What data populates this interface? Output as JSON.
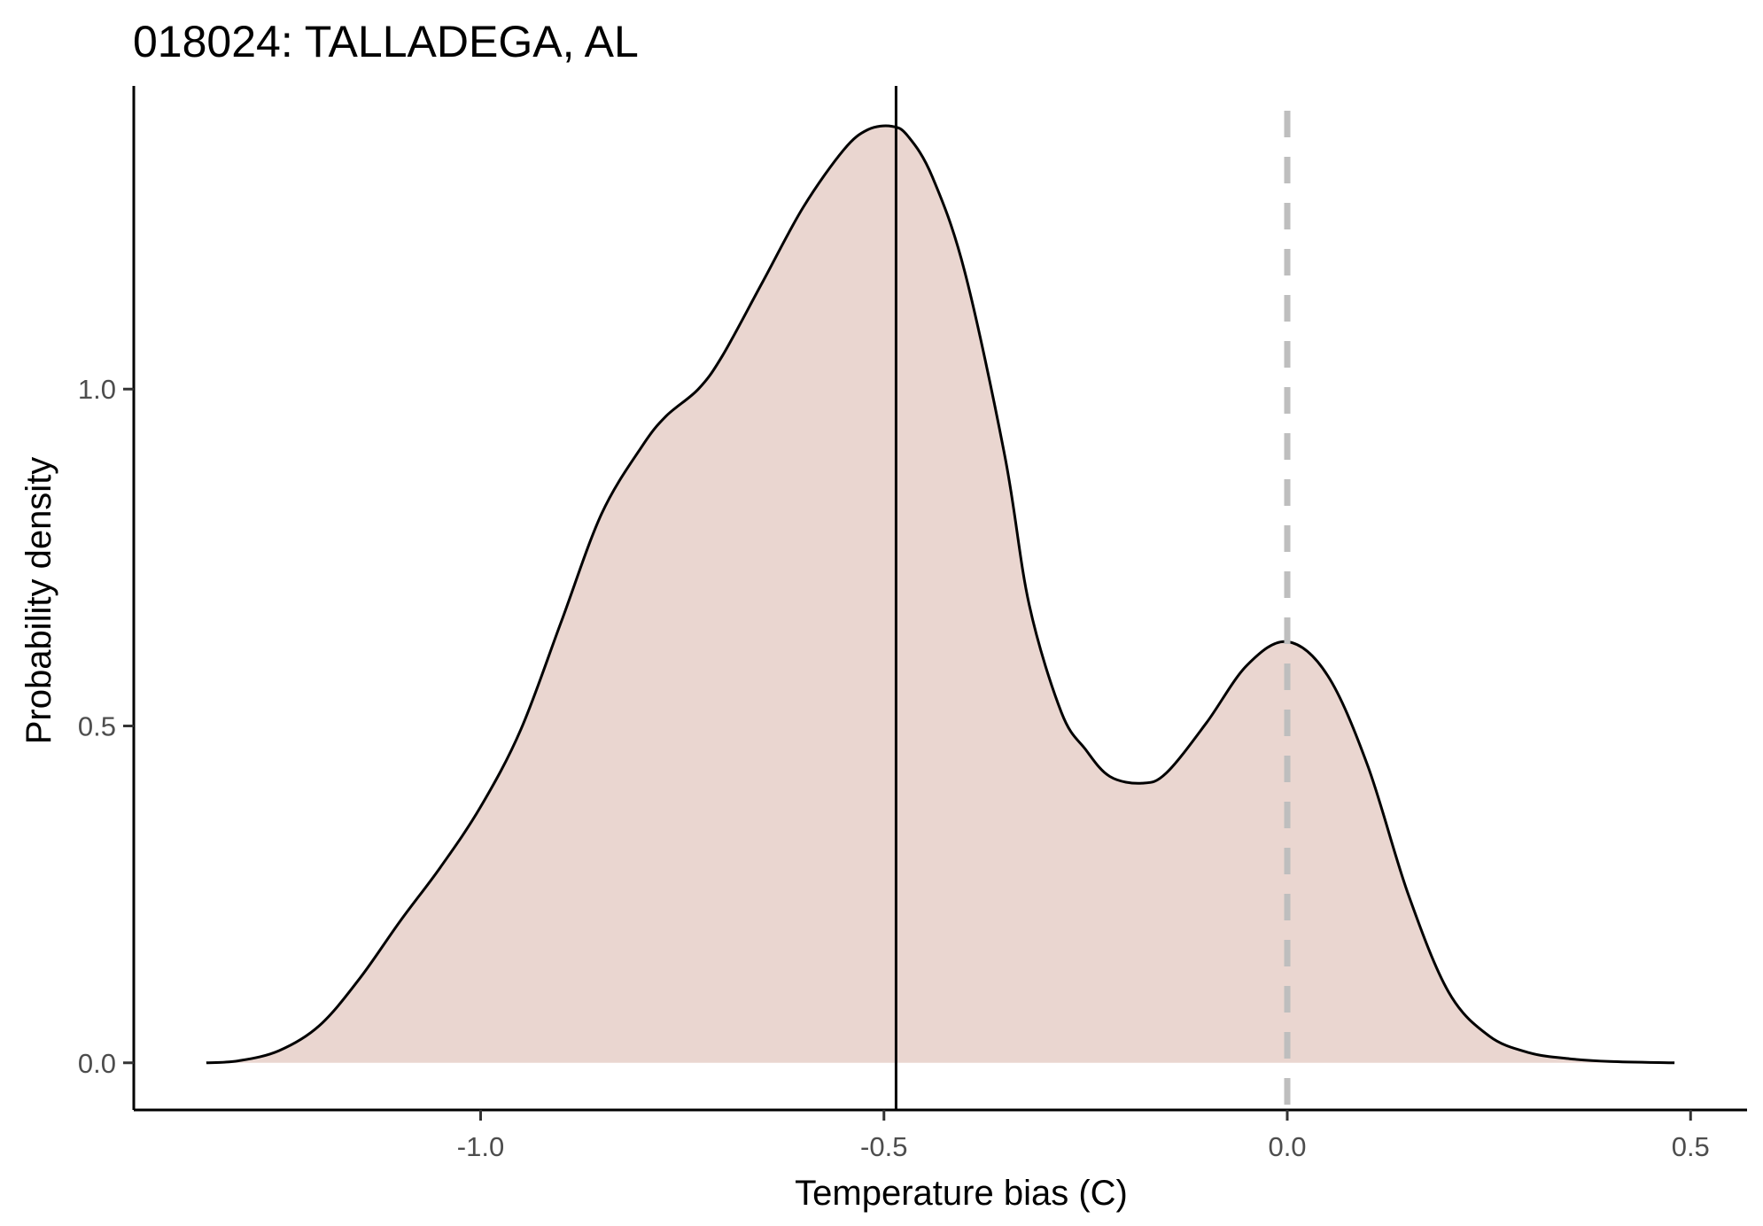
{
  "chart_data": {
    "type": "area",
    "title": "018024: TALLADEGA, AL",
    "xlabel": "Temperature bias (C)",
    "ylabel": "Probability density",
    "xlim": [
      -1.43,
      0.57
    ],
    "ylim": [
      -0.07,
      1.45
    ],
    "x_ticks": [
      -1.0,
      -0.5,
      0.0,
      0.5
    ],
    "x_tick_labels": [
      "-1.0",
      "-0.5",
      "0.0",
      "0.5"
    ],
    "y_ticks": [
      0.0,
      0.5,
      1.0
    ],
    "y_tick_labels": [
      "0.0",
      "0.5",
      "1.0"
    ],
    "grid": false,
    "legend": "none",
    "fill_color": "#ead6d0",
    "line_color": "#000000",
    "density": {
      "x": [
        -1.34,
        -1.3,
        -1.25,
        -1.2,
        -1.15,
        -1.1,
        -1.05,
        -1.0,
        -0.95,
        -0.9,
        -0.85,
        -0.8,
        -0.77,
        -0.73,
        -0.7,
        -0.65,
        -0.6,
        -0.55,
        -0.52,
        -0.49,
        -0.47,
        -0.44,
        -0.4,
        -0.35,
        -0.32,
        -0.28,
        -0.25,
        -0.22,
        -0.18,
        -0.15,
        -0.1,
        -0.05,
        0.0,
        0.05,
        0.1,
        0.15,
        0.2,
        0.25,
        0.3,
        0.35,
        0.4,
        0.48
      ],
      "y": [
        0.0,
        0.003,
        0.018,
        0.055,
        0.125,
        0.21,
        0.29,
        0.38,
        0.495,
        0.655,
        0.815,
        0.915,
        0.96,
        1.0,
        1.05,
        1.16,
        1.27,
        1.355,
        1.385,
        1.39,
        1.375,
        1.315,
        1.175,
        0.9,
        0.68,
        0.52,
        0.465,
        0.425,
        0.415,
        0.43,
        0.505,
        0.59,
        0.625,
        0.575,
        0.44,
        0.25,
        0.105,
        0.04,
        0.015,
        0.006,
        0.002,
        0.0
      ]
    },
    "vlines": [
      {
        "x": -0.485,
        "style": "solid",
        "color": "#000000"
      },
      {
        "x": 0.0,
        "style": "dashed",
        "color": "#bebebe"
      }
    ]
  }
}
